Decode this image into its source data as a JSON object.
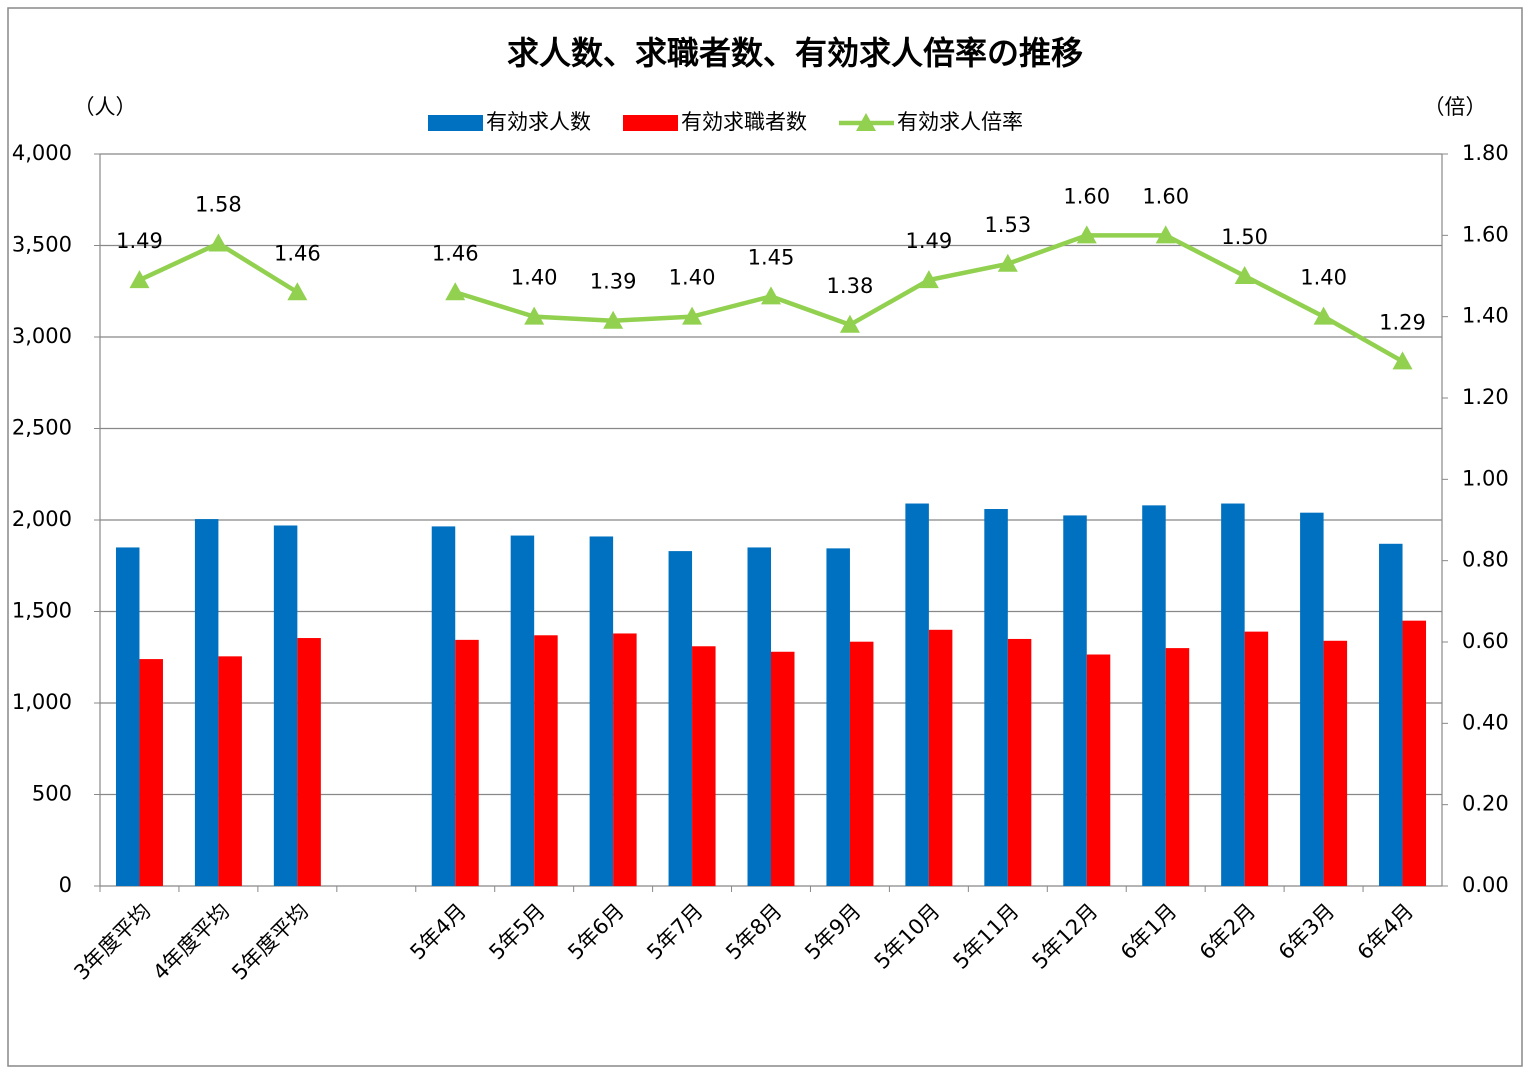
{
  "chart_data": {
    "type": "bar",
    "title": "求人数、求職者数、有効求人倍率の推移",
    "y_label": "（人）",
    "y2_label": "（倍）",
    "categories": [
      "3年度平均",
      "4年度平均",
      "5年度平均",
      null,
      "5年4月",
      "5年5月",
      "5年6月",
      "5年7月",
      "5年8月",
      "5年9月",
      "5年10月",
      "5年11月",
      "5年12月",
      "6年1月",
      "6年2月",
      "6年3月",
      "6年4月"
    ],
    "series": [
      {
        "name": "有効求人数",
        "type": "bar",
        "color": "#0070c0",
        "values": [
          1850,
          2005,
          1970,
          null,
          1965,
          1915,
          1910,
          1830,
          1850,
          1845,
          2090,
          2060,
          2025,
          2080,
          2090,
          2040,
          1870
        ]
      },
      {
        "name": "有効求職者数",
        "type": "bar",
        "color": "#ff0000",
        "values": [
          1240,
          1255,
          1355,
          null,
          1345,
          1370,
          1380,
          1310,
          1280,
          1335,
          1400,
          1350,
          1265,
          1300,
          1390,
          1340,
          1450
        ]
      },
      {
        "name": "有効求人倍率",
        "type": "line",
        "axis": "y2",
        "color": "#92d050",
        "values": [
          1.49,
          1.58,
          1.46,
          null,
          1.46,
          1.4,
          1.39,
          1.4,
          1.45,
          1.38,
          1.49,
          1.53,
          1.6,
          1.6,
          1.5,
          1.4,
          1.29
        ],
        "value_labels": [
          "1.49",
          "1.58",
          "1.46",
          null,
          "1.46",
          "1.40",
          "1.39",
          "1.40",
          "1.45",
          "1.38",
          "1.49",
          "1.53",
          "1.60",
          "1.60",
          "1.50",
          "1.40",
          "1.29"
        ]
      }
    ],
    "ylim": [
      0,
      4000
    ],
    "yticks": [
      0,
      500,
      {
        "value": 1000,
        "label": "1,000"
      },
      {
        "value": 1500,
        "label": "1,500"
      },
      {
        "value": 2000,
        "label": "2,000"
      },
      {
        "value": 2500,
        "label": "2,500"
      },
      {
        "value": 3000,
        "label": "3,000"
      },
      {
        "value": 3500,
        "label": "3,500"
      },
      {
        "value": 4000,
        "label": "4,000"
      }
    ],
    "y2lim": [
      0,
      1.8
    ],
    "y2ticks": [
      {
        "value": 0,
        "label": "0.00"
      },
      {
        "value": 0.2,
        "label": "0.20"
      },
      {
        "value": 0.4,
        "label": "0.40"
      },
      {
        "value": 0.6,
        "label": "0.60"
      },
      {
        "value": 0.8,
        "label": "0.80"
      },
      {
        "value": 1,
        "label": "1.00"
      },
      {
        "value": 1.2,
        "label": "1.20"
      },
      {
        "value": 1.4,
        "label": "1.40"
      },
      {
        "value": 1.6,
        "label": "1.60"
      },
      {
        "value": 1.8,
        "label": "1.80"
      }
    ],
    "grid": true
  }
}
